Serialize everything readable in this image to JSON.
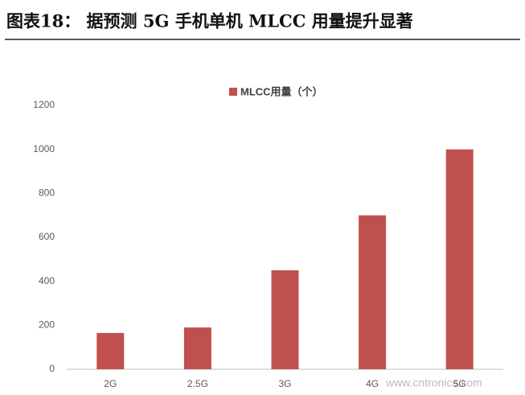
{
  "chart_data": {
    "type": "bar",
    "title": "图表18：  据预测 5G 手机单机 MLCC 用量提升显著",
    "legend": "MLCC用量（个）",
    "categories": [
      "2G",
      "2.5G",
      "3G",
      "4G",
      "5G"
    ],
    "values": [
      165,
      190,
      450,
      700,
      1000
    ],
    "color": "#c0504d",
    "ylim": [
      0,
      1200
    ],
    "yticks": [
      0,
      200,
      400,
      600,
      800,
      1000,
      1200
    ],
    "grid": false,
    "watermark": "www.cntronics.com"
  }
}
